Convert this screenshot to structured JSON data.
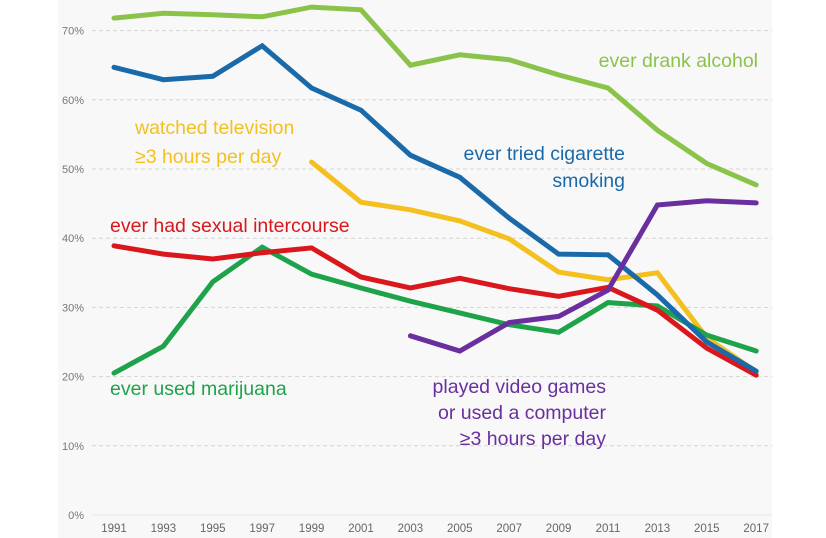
{
  "chart_data": {
    "type": "line",
    "title": "",
    "xlabel": "",
    "ylabel": "",
    "ylim": [
      0,
      75
    ],
    "grid": true,
    "legend": "inline labels",
    "y_ticks": [
      "0%",
      "10%",
      "20%",
      "30%",
      "40%",
      "50%",
      "60%",
      "70%"
    ],
    "y_tick_values": [
      0,
      10,
      20,
      30,
      40,
      50,
      60,
      70
    ],
    "x": [
      "1991",
      "1993",
      "1995",
      "1997",
      "1999",
      "2001",
      "2003",
      "2005",
      "2007",
      "2009",
      "2011",
      "2013",
      "2015",
      "2017"
    ],
    "series": [
      {
        "name": "ever drank alcohol",
        "label_lines": [
          "ever drank alcohol"
        ],
        "color": "#8bc34a",
        "values": [
          71.8,
          72.5,
          72.3,
          72.0,
          73.4,
          73.0,
          65.0,
          66.5,
          65.8,
          63.6,
          61.7,
          55.6,
          50.8,
          47.7
        ]
      },
      {
        "name": "ever tried cigarette smoking",
        "label_lines": [
          "ever tried cigarette",
          "smoking"
        ],
        "color": "#1a6aaa",
        "values": [
          64.7,
          62.9,
          63.4,
          67.8,
          61.7,
          58.5,
          52.0,
          48.8,
          42.9,
          37.7,
          37.6,
          31.8,
          25.0,
          20.8
        ]
      },
      {
        "name": "watched television ≥3 hours per day",
        "label_lines": [
          "watched television",
          "≥3 hours per day"
        ],
        "color": "#f4c020",
        "values": [
          null,
          null,
          null,
          null,
          51.0,
          45.2,
          44.1,
          42.5,
          39.9,
          35.1,
          34.0,
          35.0,
          25.6,
          20.7
        ]
      },
      {
        "name": "ever had sexual intercourse",
        "label_lines": [
          "ever had sexual intercourse"
        ],
        "color": "#d9171c",
        "values": [
          38.9,
          37.7,
          37.0,
          37.9,
          38.6,
          34.4,
          32.8,
          34.2,
          32.7,
          31.6,
          32.9,
          29.6,
          24.1,
          20.2
        ]
      },
      {
        "name": "ever used marijuana",
        "label_lines": [
          "ever used marijuana"
        ],
        "color": "#1ea24a",
        "values": [
          20.5,
          24.4,
          33.7,
          38.7,
          34.8,
          32.8,
          30.9,
          29.2,
          27.5,
          26.4,
          30.7,
          30.2,
          26.0,
          23.7
        ]
      },
      {
        "name": "played video games or used a computer ≥3 hours per day",
        "label_lines": [
          "played video games",
          "or used a computer",
          "≥3 hours per day"
        ],
        "color": "#6a2f9e",
        "values": [
          null,
          null,
          null,
          null,
          null,
          null,
          25.9,
          23.7,
          27.8,
          28.7,
          32.5,
          44.8,
          45.4,
          45.1
        ]
      }
    ]
  }
}
